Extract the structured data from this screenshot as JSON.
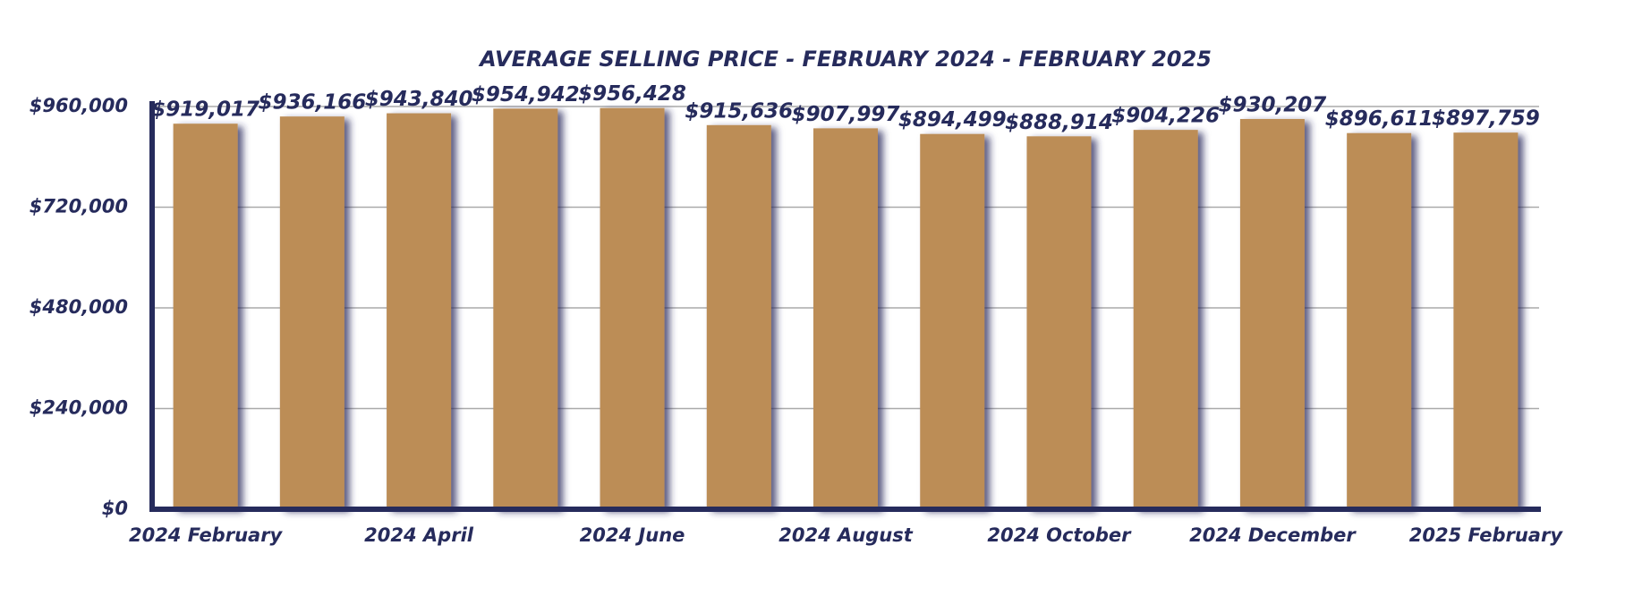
{
  "chart_data": {
    "type": "bar",
    "title": "AVERAGE SELLING PRICE - FEBRUARY 2024 - FEBRUARY 2025",
    "categories": [
      "2024 February",
      null,
      "2024 April",
      null,
      "2024 June",
      null,
      "2024 August",
      null,
      "2024 October",
      null,
      "2024 December",
      null,
      "2025 February"
    ],
    "values": [
      919017,
      936166,
      943840,
      954942,
      956428,
      915636,
      907997,
      894499,
      888914,
      904226,
      930207,
      896611,
      897759
    ],
    "value_labels": [
      "$919,017",
      "$936,166",
      "$943,840",
      "$954,942",
      "$956,428",
      "$915,636",
      "$907,997",
      "$894,499",
      "$888,914",
      "$904,226",
      "$930,207",
      "$896,611",
      "$897,759"
    ],
    "color": "#bc8d57",
    "ylim": [
      0,
      960000
    ],
    "yticks": [
      {
        "value": 0,
        "label": "$0"
      },
      {
        "value": 240000,
        "label": "$240,000"
      },
      {
        "value": 480000,
        "label": "$480,000"
      },
      {
        "value": 720000,
        "label": "$720,000"
      },
      {
        "value": 960000,
        "label": "$960,000"
      }
    ],
    "grid": true
  }
}
